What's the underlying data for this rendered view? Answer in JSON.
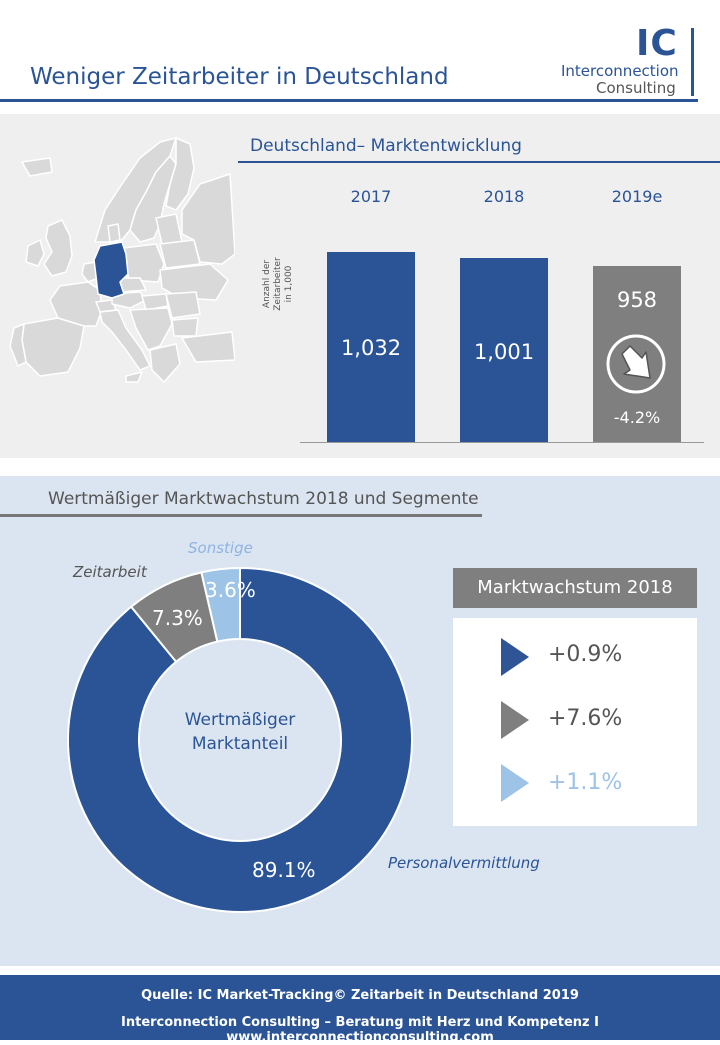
{
  "header": {
    "title": "Weniger Zeitarbeiter in Deutschland",
    "logo_mark": "IC",
    "logo_line1": "Interconnection",
    "logo_line2": "Consulting"
  },
  "market": {
    "title": "Deutschland–  Marktentwicklung",
    "y_label": "Anzahl der Zeitarbeiter in 1,000"
  },
  "segments": {
    "title": "Wertmäßiger Marktwachstum 2018 und Segmente",
    "center_label_1": "Wertmäßiger",
    "center_label_2": "Marktanteil"
  },
  "growth": {
    "title": "Marktwachstum 2018",
    "items": [
      {
        "value": "+0.9%",
        "color": "#2f5597"
      },
      {
        "value": "+7.6%",
        "color": "#7f7f7f"
      },
      {
        "value": "+1.1%",
        "color": "#9dc3e6"
      }
    ]
  },
  "footer": {
    "source": "Quelle: IC Market-Tracking© Zeitarbeit in Deutschland 2019",
    "tagline": "Interconnection Consulting – Beratung mit Herz und Kompetenz  I  www.interconnectionconsulting.com"
  },
  "map": {
    "highlight_country": "Germany",
    "highlight_color": "#2a5496"
  },
  "chart_data": [
    {
      "type": "bar",
      "categories": [
        "2017",
        "2018",
        "2019e"
      ],
      "values": [
        1032,
        1001,
        958
      ],
      "value_labels": [
        "1,032",
        "1,001",
        "958"
      ],
      "change_label": "-4.2%",
      "title": "Deutschland–  Marktentwicklung",
      "ylabel": "Anzahl der Zeitarbeiter in 1,000",
      "colors": [
        "#2a5496",
        "#2a5496",
        "#7f7f7f"
      ]
    },
    {
      "type": "pie",
      "labels": [
        "Personalvermittlung",
        "Zeitarbeit",
        "Sonstige"
      ],
      "values": [
        89.1,
        7.3,
        3.6
      ],
      "value_labels": [
        "89.1%",
        "7.3%",
        "3.6%"
      ],
      "colors": [
        "#2a5496",
        "#7f7f7f",
        "#9dc3e6"
      ]
    }
  ]
}
